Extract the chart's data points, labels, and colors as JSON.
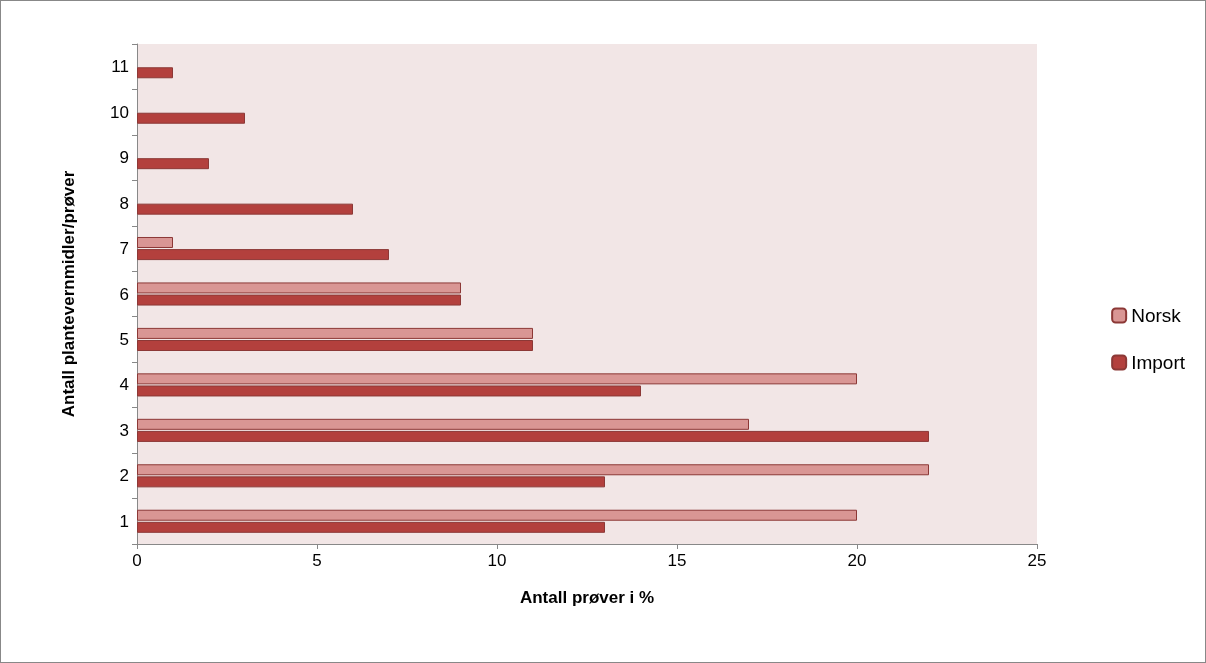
{
  "chart_data": {
    "type": "bar",
    "orientation": "horizontal",
    "xlabel": "Antall prøver i %",
    "ylabel": "Antall plantevernmidler/prøver",
    "categories": [
      "11",
      "10",
      "9",
      "8",
      "7",
      "6",
      "5",
      "4",
      "3",
      "2",
      "1"
    ],
    "series": [
      {
        "name": "Norsk",
        "color": "#d99694",
        "values": [
          null,
          null,
          null,
          null,
          1,
          9,
          11,
          20,
          17,
          22,
          20
        ]
      },
      {
        "name": "Import",
        "color": "#b3403d",
        "values": [
          1,
          3,
          2,
          6,
          7,
          9,
          11,
          14,
          22,
          13,
          13
        ]
      }
    ],
    "xlim": [
      0,
      25
    ],
    "xticks": [
      0,
      5,
      10,
      15,
      20,
      25
    ],
    "grid": false,
    "legend": "right"
  }
}
